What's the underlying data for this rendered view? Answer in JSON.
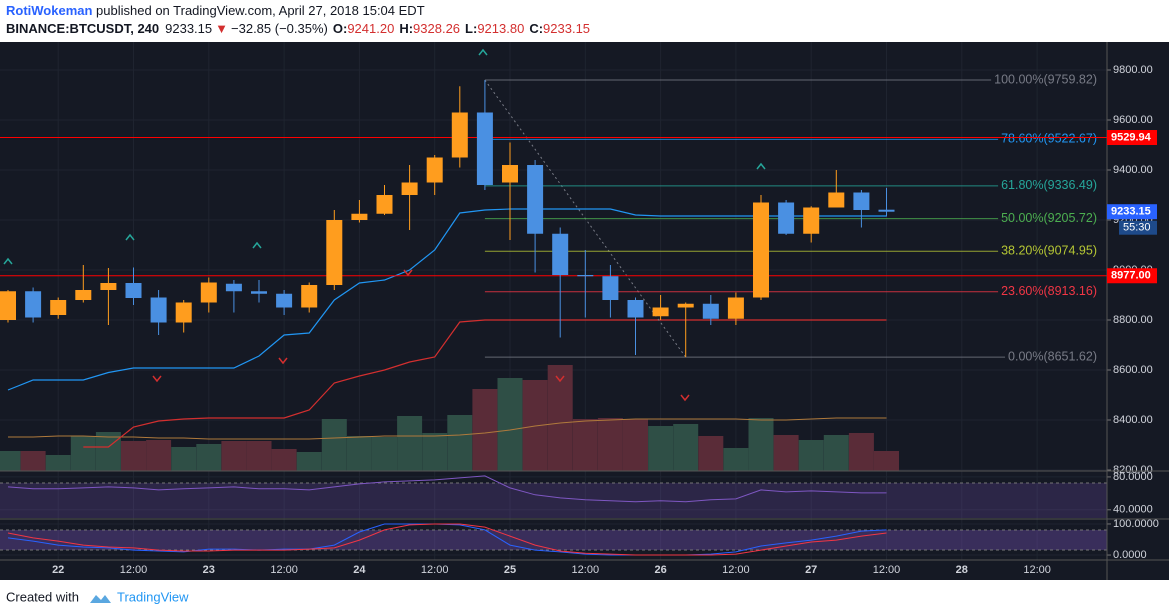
{
  "header": {
    "author": "RotiWokeman",
    "published": " published on TradingView.com, April 27, 2018 15:04 EDT",
    "symbol": "BINANCE:BTCUSDT, 240",
    "price": "9233.15",
    "arrow": "▼",
    "change": "−32.85 (−0.35%)",
    "o_label": "O:",
    "o": "9241.20",
    "h_label": "H:",
    "h": "9328.26",
    "l_label": "L:",
    "l": "9213.80",
    "c_label": "C:",
    "c": "9233.15"
  },
  "footer": {
    "created": "Created with",
    "brand": "TradingView"
  },
  "chart_data": [
    {
      "type": "candlestick",
      "categories": [
        null,
        null,
        "22",
        null,
        null,
        "12:00",
        null,
        null,
        "23",
        null,
        null,
        "12:00",
        null,
        null,
        "24",
        null,
        null,
        "12:00",
        null,
        null,
        "25",
        null,
        null,
        "12:00",
        null,
        null,
        "26",
        null,
        null,
        "12:00",
        null,
        null,
        "27",
        null,
        null,
        "12:00",
        null,
        null,
        "28",
        null,
        null,
        "12:00"
      ],
      "open": [
        8800,
        8915,
        8820,
        8880,
        8920,
        8948,
        8890,
        8790,
        8870,
        8945,
        8915,
        8905,
        8850,
        8940,
        9200,
        9225,
        9300,
        9350,
        9450,
        9630,
        9350,
        9420,
        9145,
        8980,
        8975,
        8880,
        8815,
        8850,
        8865,
        8805,
        8890,
        9270,
        9145,
        9250,
        9310,
        9241.2,
        null,
        null,
        null,
        null,
        null,
        null
      ],
      "high": [
        8920,
        8930,
        8890,
        9020,
        9008,
        9010,
        8920,
        8880,
        8970,
        8960,
        8960,
        8920,
        8950,
        9240,
        9280,
        9340,
        9420,
        9460,
        9735,
        9759.82,
        9510,
        9440,
        9170,
        9080,
        9020,
        8890,
        8900,
        8870,
        8900,
        8910,
        9300,
        9280,
        9255,
        9400,
        9320,
        9328.26,
        null,
        null,
        null,
        null,
        null,
        null
      ],
      "low": [
        8790,
        8790,
        8805,
        8870,
        8780,
        8860,
        8740,
        8750,
        8830,
        8830,
        8870,
        8820,
        8830,
        8920,
        9190,
        9220,
        9160,
        9300,
        9410,
        9320,
        9120,
        8990,
        8730,
        8810,
        8810,
        8660,
        8800,
        8651.62,
        8780,
        8780,
        8880,
        9140,
        9110,
        9250,
        9170,
        9213.8,
        null,
        null,
        null,
        null,
        null,
        null
      ],
      "close": [
        8915,
        8810,
        8880,
        8920,
        8948,
        8888,
        8790,
        8870,
        8950,
        8915,
        8905,
        8850,
        8940,
        9200,
        9225,
        9300,
        9350,
        9450,
        9630,
        9340,
        9420,
        9145,
        8980,
        8975,
        8880,
        8810,
        8850,
        8865,
        8805,
        8890,
        9270,
        9145,
        9250,
        9310,
        9240,
        9233.15,
        null,
        null,
        null,
        null,
        null,
        null
      ],
      "up_color": "#ff9d1e",
      "down_color": "#4a90e2",
      "volume": [
        20,
        20,
        16,
        35,
        39,
        30,
        31,
        24,
        27,
        30,
        30,
        22,
        19,
        52,
        35,
        34,
        55,
        38,
        56,
        82,
        93,
        91,
        106,
        52,
        53,
        52,
        45,
        47,
        35,
        23,
        53,
        36,
        31,
        36,
        38,
        20,
        null,
        null,
        null,
        null,
        null,
        null
      ],
      "volume_up_color": "#2f4f46",
      "volume_down_color": "#5a2c38",
      "volume_ma": {
        "color": "#b07a3c",
        "values": [
          34,
          34,
          35,
          35,
          34,
          34,
          33,
          33,
          32,
          32,
          32,
          32,
          32,
          33,
          34,
          35,
          35,
          35,
          36,
          38,
          41,
          45,
          48,
          50,
          51,
          52,
          52,
          52,
          52,
          52,
          51,
          51,
          52,
          53,
          53,
          53,
          null,
          null,
          null,
          null,
          null,
          null
        ]
      },
      "overlays": [
        {
          "color": "#2196f3",
          "values": [
            8520,
            8560,
            8560,
            8560,
            8590,
            8608,
            8608,
            8608,
            8608,
            8608,
            8656,
            8740,
            8748,
            8880,
            8948,
            8960,
            9000,
            9080,
            9228,
            9240,
            9244,
            9244,
            9244,
            9244,
            9244,
            9220,
            9216,
            9216,
            9216,
            9216,
            9216,
            9216,
            9216,
            9216,
            9216,
            9216,
            null,
            null,
            null,
            null,
            null,
            null
          ]
        },
        {
          "color": "#d32f2f",
          "values": [
            null,
            null,
            null,
            8292,
            8292,
            8372,
            8396,
            8404,
            8408,
            8408,
            8408,
            8408,
            8440,
            8548,
            8576,
            8600,
            8632,
            8652,
            8792,
            8800,
            8800,
            8800,
            8800,
            8800,
            8800,
            8800,
            8800,
            8800,
            8800,
            8800,
            8800,
            8800,
            8800,
            8800,
            8800,
            8800,
            null,
            null,
            null,
            null,
            null,
            null
          ]
        }
      ],
      "ylim": [
        8196,
        9912
      ],
      "yticks": [
        {
          "value": 9800,
          "label": "9800.00"
        },
        {
          "value": 9600,
          "label": "9600.00"
        },
        {
          "value": 9400,
          "label": "9400.00"
        },
        {
          "value": 9200,
          "label": "9200.00"
        },
        {
          "value": 9000,
          "label": "9000.00"
        },
        {
          "value": 8800,
          "label": "8800.00"
        },
        {
          "value": 8600,
          "label": "8600.00"
        },
        {
          "value": 8400,
          "label": "8400.00"
        },
        {
          "value": 8200,
          "label": "8200.00"
        }
      ],
      "grid": true,
      "fib": [
        {
          "value": 9759.82,
          "label": "100.00%(9759.82)",
          "color": "#787b86"
        },
        {
          "value": 9522.67,
          "label": "78.60%(9522.67)",
          "color": "#2196f3"
        },
        {
          "value": 9336.49,
          "label": "61.80%(9336.49)",
          "color": "#26a69a"
        },
        {
          "value": 9205.72,
          "label": "50.00%(9205.72)",
          "color": "#4caf50"
        },
        {
          "value": 9074.95,
          "label": "38.20%(9074.95)",
          "color": "#b5c634"
        },
        {
          "value": 8913.16,
          "label": "23.60%(8913.16)",
          "color": "#f23645"
        },
        {
          "value": 8651.62,
          "label": "0.00%(8651.62)",
          "color": "#787b86"
        }
      ],
      "hlines": [
        {
          "value": 9529.94,
          "label": "9529.94",
          "color": "#ff0000"
        },
        {
          "value": 8977,
          "label": "8977.00",
          "color": "#ff0000"
        }
      ],
      "last_price": {
        "value": 9233.15,
        "label": "9233.15",
        "color": "#2962ff",
        "countdown": "55:30"
      }
    },
    {
      "type": "line",
      "ylim": [
        30,
        86
      ],
      "yticks": [
        {
          "value": 80,
          "label": "80.0000"
        },
        {
          "value": 40,
          "label": "40.0000"
        }
      ],
      "series": [
        {
          "color": "#7e57c2",
          "values": [
            67.9,
            65.5,
            65.5,
            66.7,
            67.9,
            66.7,
            64.2,
            65.5,
            66.7,
            67.9,
            65.5,
            65.5,
            64.2,
            67.9,
            71.5,
            73.9,
            75.2,
            76.4,
            78.8,
            81.2,
            66.7,
            58.2,
            54.5,
            52.1,
            50.9,
            49.7,
            50.9,
            49.7,
            52.1,
            53.3,
            64.2,
            61.8,
            63,
            61.8,
            60.6,
            60.6,
            null,
            null,
            null,
            null,
            null,
            null
          ]
        }
      ]
    },
    {
      "type": "line",
      "ylim": [
        -16,
        116
      ],
      "yticks": [
        {
          "value": 100,
          "label": "100.0000"
        },
        {
          "value": 0,
          "label": "0.0000"
        }
      ],
      "series": [
        {
          "color": "#2962ff",
          "values": [
            55,
            45,
            32,
            26,
            23,
            16,
            13,
            10,
            19,
            19,
            16,
            19,
            19,
            32,
            74,
            100,
            100,
            100,
            97,
            81,
            32,
            16,
            10,
            3,
            0,
            0,
            0,
            0,
            3,
            10,
            29,
            39,
            48,
            61,
            77,
            81,
            null,
            null,
            null,
            null,
            null,
            null
          ]
        },
        {
          "color": "#f23645",
          "values": [
            71,
            55,
            45,
            32,
            26,
            23,
            16,
            13,
            13,
            16,
            16,
            16,
            19,
            23,
            48,
            81,
            97,
            100,
            100,
            90,
            61,
            32,
            13,
            6,
            3,
            0,
            0,
            0,
            0,
            3,
            16,
            29,
            42,
            48,
            61,
            71,
            null,
            null,
            null,
            null,
            null,
            null
          ]
        }
      ]
    }
  ]
}
